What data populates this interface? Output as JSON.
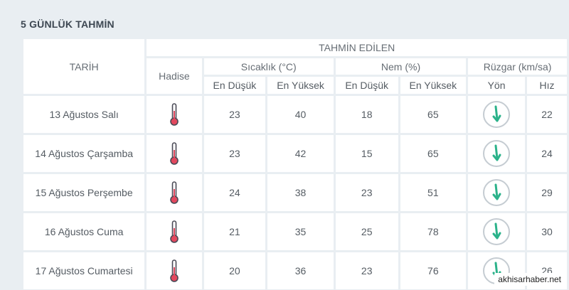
{
  "page_title": "5 GÜNLÜK TAHMİN",
  "headers": {
    "date": "TARİH",
    "forecast": "TAHMİN EDİLEN",
    "event": "Hadise",
    "temperature": "Sıcaklık (°C)",
    "humidity": "Nem (%)",
    "wind": "Rüzgar (km/sa)",
    "temp_low": "En Düşük",
    "temp_high": "En Yüksek",
    "hum_low": "En Düşük",
    "hum_high": "En Yüksek",
    "wind_dir": "Yön",
    "wind_speed": "Hız"
  },
  "colors": {
    "temp_low": "#3e8fbf",
    "temp_high": "#e2485e",
    "hum_low": "#e8a032",
    "hum_high": "#7b6fae",
    "wind_speed": "#2bb28a"
  },
  "rows": [
    {
      "date": "13 Ağustos Salı",
      "event_icon": "thermometer-icon",
      "temp_low": "23",
      "temp_high": "40",
      "hum_low": "18",
      "hum_high": "65",
      "wind_dir_icon": "wind-arrow-down-icon",
      "wind_speed": "22"
    },
    {
      "date": "14 Ağustos Çarşamba",
      "event_icon": "thermometer-icon",
      "temp_low": "23",
      "temp_high": "42",
      "hum_low": "15",
      "hum_high": "65",
      "wind_dir_icon": "wind-arrow-down-icon",
      "wind_speed": "24"
    },
    {
      "date": "15 Ağustos Perşembe",
      "event_icon": "thermometer-icon",
      "temp_low": "24",
      "temp_high": "38",
      "hum_low": "23",
      "hum_high": "51",
      "wind_dir_icon": "wind-arrow-down-icon",
      "wind_speed": "29"
    },
    {
      "date": "16 Ağustos Cuma",
      "event_icon": "thermometer-icon",
      "temp_low": "21",
      "temp_high": "35",
      "hum_low": "25",
      "hum_high": "78",
      "wind_dir_icon": "wind-arrow-down-icon",
      "wind_speed": "30"
    },
    {
      "date": "17 Ağustos Cumartesi",
      "event_icon": "thermometer-icon",
      "temp_low": "20",
      "temp_high": "36",
      "hum_low": "23",
      "hum_high": "76",
      "wind_dir_icon": "wind-arrow-down-icon",
      "wind_speed": "26"
    }
  ],
  "watermark": "akhisarhaber.net"
}
